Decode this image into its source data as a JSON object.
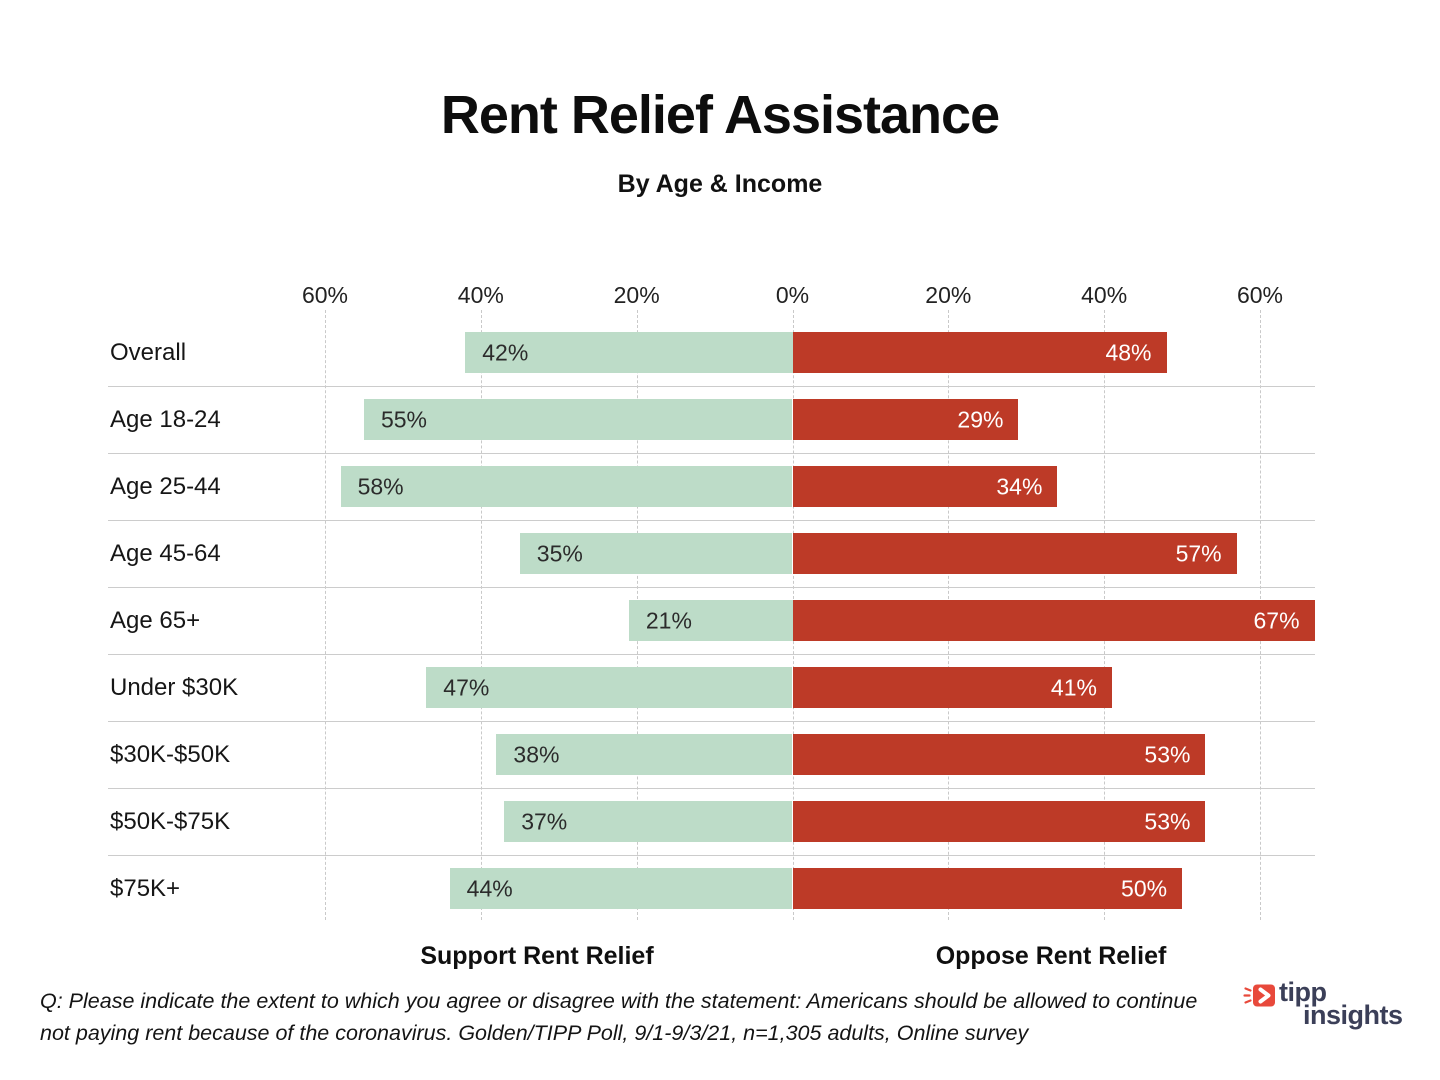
{
  "header": {
    "title": "Rent Relief Assistance",
    "subtitle": "By Age & Income"
  },
  "chart_data": {
    "type": "bar",
    "variant": "diverging-horizontal",
    "categories": [
      "Overall",
      "Age 18-24",
      "Age 25-44",
      "Age 45-64",
      "Age 65+",
      "Under $30K",
      "$30K-$50K",
      "$50K-$75K",
      "$75K+"
    ],
    "series": [
      {
        "name": "Support Rent Relief",
        "side": "left",
        "values": [
          42,
          55,
          58,
          35,
          21,
          47,
          38,
          37,
          44
        ],
        "color": "#bddcc8",
        "label_color": "#2b2b2b"
      },
      {
        "name": "Oppose Rent Relief",
        "side": "right",
        "values": [
          48,
          29,
          34,
          57,
          67,
          41,
          53,
          53,
          50
        ],
        "color": "#bd3a27",
        "label_color": "#ffffff"
      }
    ],
    "axis": {
      "tick_labels": [
        "60%",
        "40%",
        "20%",
        "0%",
        "20%",
        "40%",
        "60%"
      ],
      "tick_values": [
        -60,
        -40,
        -20,
        0,
        20,
        40,
        60
      ],
      "max_abs": 60,
      "grid": "dashed-vertical"
    },
    "legend": {
      "left_label": "Support Rent Relief",
      "right_label": "Oppose Rent Relief"
    },
    "value_suffix": "%"
  },
  "footer": {
    "line1": "Q: Please indicate the extent to which you agree or disagree with the statement: Americans should be allowed to continue",
    "line2": "not paying rent because of the coronavirus. Golden/TIPP Poll, 9/1-9/3/21, n=1,305 adults, Online survey"
  },
  "logo": {
    "line1": "tipp",
    "line2": "insights",
    "icon_color": "#e8493b",
    "text_color": "#3b3f58"
  },
  "colors": {
    "support_green": "#bddcc8",
    "oppose_red": "#bd3a27",
    "gridline": "#c9c9c9",
    "separator": "#cccccc"
  }
}
